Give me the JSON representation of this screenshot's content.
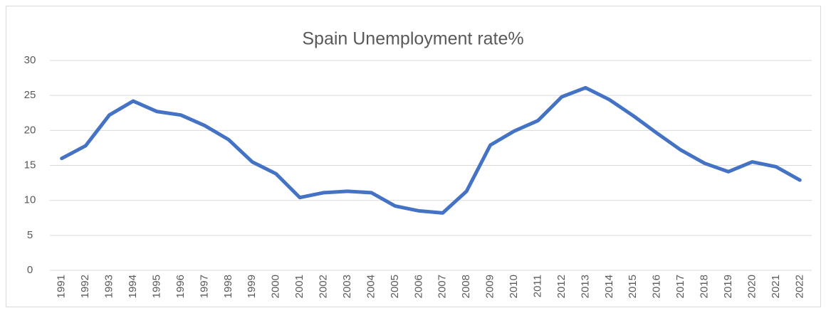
{
  "chart_data": {
    "type": "line",
    "title": "Spain Unemployment rate%",
    "categories": [
      "1991",
      "1992",
      "1993",
      "1994",
      "1995",
      "1996",
      "1997",
      "1998",
      "1999",
      "2000",
      "2001",
      "2002",
      "2003",
      "2004",
      "2005",
      "2006",
      "2007",
      "2008",
      "2009",
      "2010",
      "2011",
      "2012",
      "2013",
      "2014",
      "2015",
      "2016",
      "2017",
      "2018",
      "2019",
      "2020",
      "2021",
      "2022"
    ],
    "values": [
      16.0,
      17.8,
      22.2,
      24.2,
      22.7,
      22.2,
      20.7,
      18.7,
      15.5,
      13.8,
      10.4,
      11.1,
      11.3,
      11.1,
      9.2,
      8.5,
      8.2,
      11.3,
      17.9,
      19.9,
      21.4,
      24.8,
      26.1,
      24.4,
      22.1,
      19.6,
      17.2,
      15.3,
      14.1,
      15.5,
      14.8,
      12.9
    ],
    "color": "#4472c4",
    "ylim": [
      0,
      30
    ],
    "yticks": [
      0,
      5,
      10,
      15,
      20,
      25,
      30
    ],
    "grid": true
  }
}
